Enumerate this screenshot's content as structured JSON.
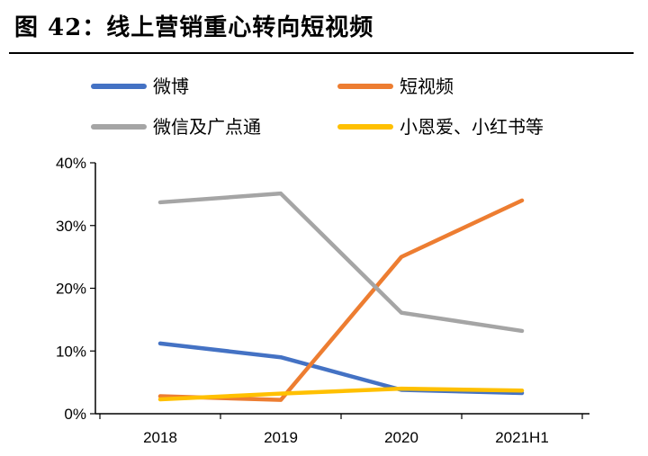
{
  "title": "图 42：线上营销重心转向短视频",
  "chart_data": {
    "type": "line",
    "categories": [
      "2018",
      "2019",
      "2020",
      "2021H1"
    ],
    "y_tick_labels": [
      "0%",
      "10%",
      "20%",
      "30%",
      "40%"
    ],
    "ylim": [
      0,
      40
    ],
    "grid": false,
    "legend_position": "top",
    "series": [
      {
        "name": "微博",
        "color": "#4472C4",
        "values": [
          11.2,
          9.0,
          3.8,
          3.3
        ]
      },
      {
        "name": "短视频",
        "color": "#ED7D31",
        "values": [
          2.8,
          2.2,
          25.0,
          34.0
        ]
      },
      {
        "name": "微信及广点通",
        "color": "#A5A5A5",
        "values": [
          33.7,
          35.1,
          16.1,
          13.2
        ]
      },
      {
        "name": "小恩爱、小红书等",
        "color": "#FFC000",
        "values": [
          2.3,
          3.2,
          4.0,
          3.7
        ]
      }
    ]
  }
}
